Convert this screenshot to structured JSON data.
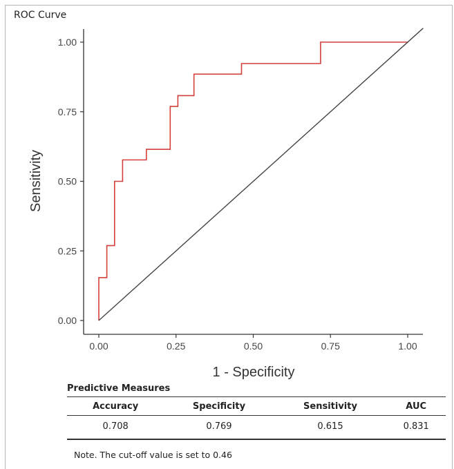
{
  "panel": {
    "title": "ROC Curve"
  },
  "chart_data": {
    "type": "line",
    "xlabel": "1 - Specificity",
    "ylabel": "Sensitivity",
    "xlim": [
      0,
      1
    ],
    "ylim": [
      0,
      1
    ],
    "x_ticks": [
      "0.00",
      "0.25",
      "0.50",
      "0.75",
      "1.00"
    ],
    "y_ticks": [
      "0.00",
      "0.25",
      "0.50",
      "0.75",
      "1.00"
    ],
    "grid": false,
    "legend": "none",
    "series": [
      {
        "color": "#d43f3a",
        "x": [
          0,
          0,
          0.026,
          0.026,
          0.051,
          0.051,
          0.077,
          0.077,
          0.154,
          0.154,
          0.231,
          0.231,
          0.256,
          0.256,
          0.308,
          0.308,
          0.462,
          0.462,
          0.718,
          0.718,
          1.0
        ],
        "y": [
          0,
          0.154,
          0.154,
          0.269,
          0.269,
          0.5,
          0.5,
          0.577,
          0.577,
          0.615,
          0.615,
          0.769,
          0.769,
          0.808,
          0.808,
          0.885,
          0.885,
          0.923,
          0.923,
          1.0,
          1.0
        ]
      },
      {
        "color": "#444444",
        "x": [
          0,
          1.05
        ],
        "y": [
          0,
          1.05
        ]
      }
    ]
  },
  "measures": {
    "title": "Predictive Measures",
    "headers": [
      "Accuracy",
      "Specificity",
      "Sensitivity",
      "AUC"
    ],
    "values": [
      "0.708",
      "0.769",
      "0.615",
      "0.831"
    ],
    "note": "Note. The cut-off value is set to 0.46"
  }
}
